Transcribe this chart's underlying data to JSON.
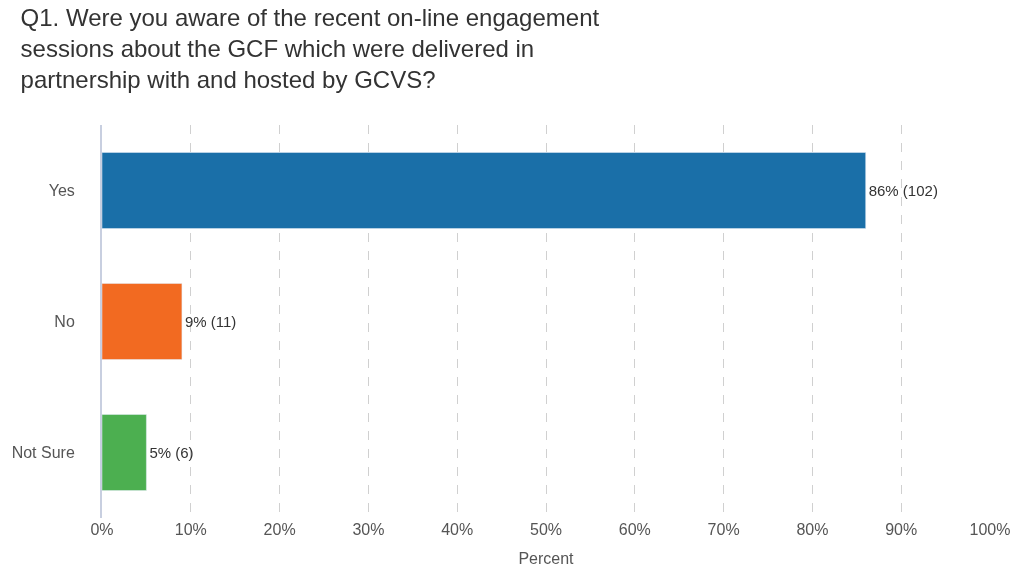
{
  "chart_data": {
    "type": "bar",
    "orientation": "horizontal",
    "title": "Q1. Were you aware of the recent on-line engagement sessions about the GCF which were delivered in partnership with and hosted by GCVS?",
    "xlabel": "Percent",
    "categories": [
      "Yes",
      "No",
      "Not Sure"
    ],
    "values": [
      86,
      9,
      5
    ],
    "colors": [
      "#1a6fa8",
      "#f26a21",
      "#4caf50"
    ],
    "value_labels": [
      "86% (102)",
      "9% (11)",
      "5% (6)"
    ],
    "xlim": [
      0,
      100
    ],
    "xticks": [
      {
        "value": 0,
        "label": "0%"
      },
      {
        "value": 10,
        "label": "10%"
      },
      {
        "value": 20,
        "label": "20%"
      },
      {
        "value": 30,
        "label": "30%"
      },
      {
        "value": 40,
        "label": "40%"
      },
      {
        "value": 50,
        "label": "50%"
      },
      {
        "value": 60,
        "label": "60%"
      },
      {
        "value": 70,
        "label": "70%"
      },
      {
        "value": 80,
        "label": "80%"
      },
      {
        "value": 90,
        "label": "90%"
      },
      {
        "value": 100,
        "label": "100%"
      }
    ],
    "grid": "x",
    "legend": false
  }
}
